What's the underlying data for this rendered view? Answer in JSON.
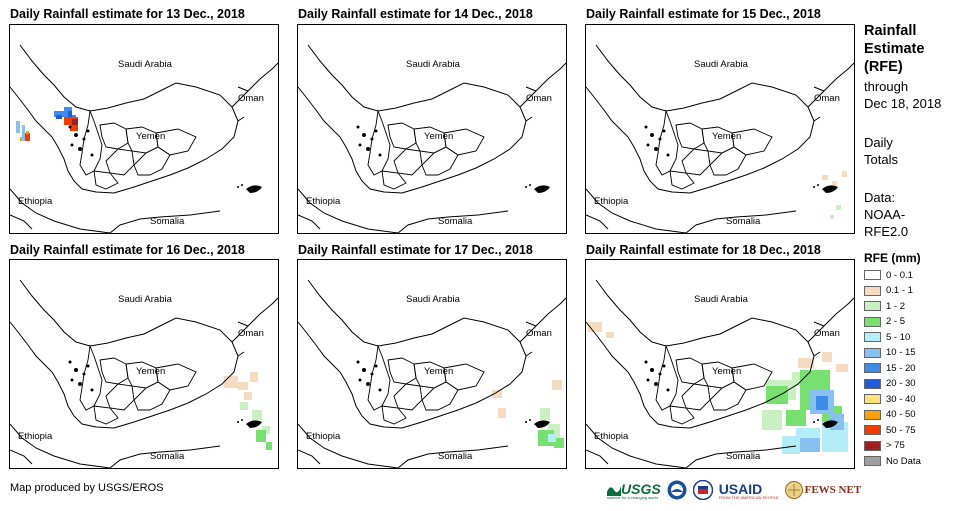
{
  "panels": [
    {
      "title": "Daily Rainfall estimate for 13 Dec., 2018",
      "day": 13
    },
    {
      "title": "Daily Rainfall estimate for 14 Dec., 2018",
      "day": 14
    },
    {
      "title": "Daily Rainfall estimate for 15 Dec., 2018",
      "day": 15
    },
    {
      "title": "Daily Rainfall estimate for 16 Dec., 2018",
      "day": 16
    },
    {
      "title": "Daily Rainfall estimate for 17 Dec., 2018",
      "day": 17
    },
    {
      "title": "Daily Rainfall estimate for 18 Dec., 2018",
      "day": 18
    }
  ],
  "map_labels": {
    "saudi": "Saudi Arabia",
    "oman": "Oman",
    "yemen": "Yemen",
    "ethiopia": "Ethiopia",
    "somalia": "Somalia"
  },
  "legend": {
    "title_line1": "Rainfall",
    "title_line2": "Estimate",
    "title_line3": "(RFE)",
    "through": "through",
    "date": "Dec 18, 2018",
    "daily_line1": "Daily",
    "daily_line2": "Totals",
    "data_line1": "Data:",
    "data_line2": "NOAA-",
    "data_line3": "RFE2.0",
    "unit_title": "RFE (mm)",
    "classes": [
      {
        "label": "0 - 0.1",
        "color": "#ffffff"
      },
      {
        "label": "0.1 - 1",
        "color": "#f5dcc0"
      },
      {
        "label": "1 - 2",
        "color": "#c8f0c0"
      },
      {
        "label": "2 - 5",
        "color": "#78e070"
      },
      {
        "label": "5 - 10",
        "color": "#b4ecf8"
      },
      {
        "label": "10 - 15",
        "color": "#88c0f0"
      },
      {
        "label": "15 - 20",
        "color": "#3c8ce8"
      },
      {
        "label": "20 - 30",
        "color": "#1e5adc"
      },
      {
        "label": "30 - 40",
        "color": "#ffe080"
      },
      {
        "label": "40 - 50",
        "color": "#ffa000"
      },
      {
        "label": "50 - 75",
        "color": "#f03c00"
      },
      {
        "label": "> 75",
        "color": "#a01e1e"
      },
      {
        "label": "No Data",
        "color": "#a0a0a0"
      }
    ]
  },
  "footer": "Map produced by USGS/EROS",
  "logos": {
    "usgs": "USGS",
    "usgs_tag": "science for a changing world",
    "noaa": "NOAA",
    "usaid": "USAID",
    "usaid_tag": "FROM THE AMERICAN PEOPLE",
    "fews": "FEWS NET"
  }
}
